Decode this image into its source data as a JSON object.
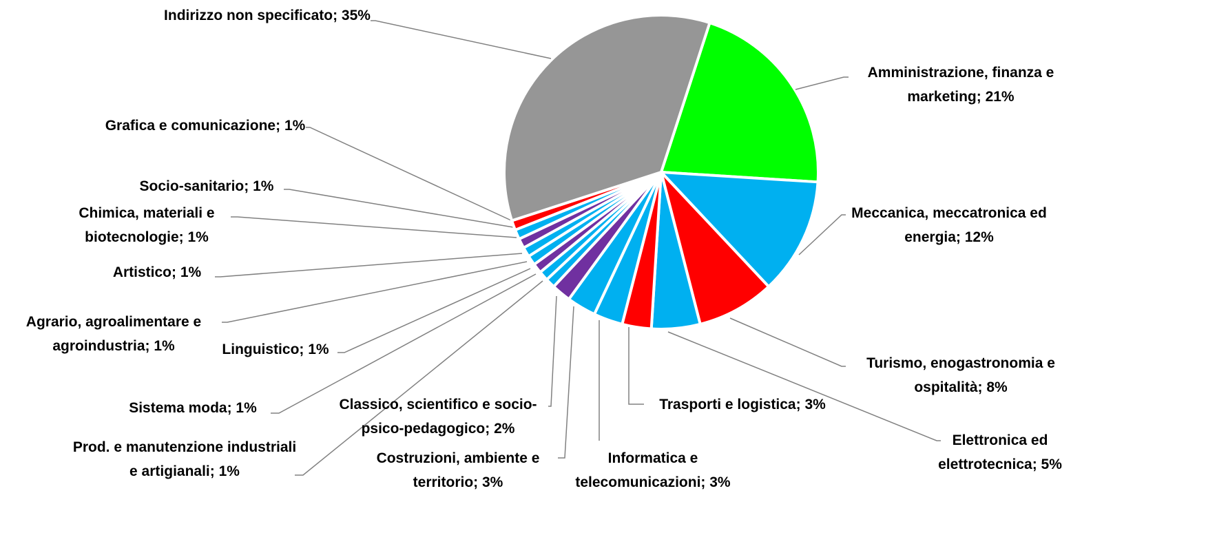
{
  "chart_data": {
    "type": "pie",
    "categories": [
      "Amministrazione, finanza e marketing",
      "Meccanica, meccatronica ed energia",
      "Turismo, enogastronomia e ospitalità",
      "Elettronica ed elettrotecnica",
      "Trasporti e logistica",
      "Informatica e telecomunicazioni",
      "Costruzioni, ambiente e territorio",
      "Classico, scientifico e socio-psico-pedagogico",
      "Prod. e manutenzione industriali e artigianali",
      "Sistema moda",
      "Linguistico",
      "Agrario, agroalimentare e agroindustria",
      "Artistico",
      "Chimica, materiali e biotecnologie",
      "Socio-sanitario",
      "Grafica e comunicazione",
      "Indirizzo non specificato"
    ],
    "values": [
      21,
      12,
      8,
      5,
      3,
      3,
      3,
      2,
      1,
      1,
      1,
      1,
      1,
      1,
      1,
      1,
      35
    ],
    "value_labels": [
      "21%",
      "12%",
      "8%",
      "5%",
      "3%",
      "3%",
      "3%",
      "2%",
      "1%",
      "1%",
      "1%",
      "1%",
      "1%",
      "1%",
      "1%",
      "1%",
      "35%"
    ],
    "label_separator": "; ",
    "colors": [
      "#00ff00",
      "#00b0f0",
      "#ff0000",
      "#00b0f0",
      "#ff0000",
      "#00b0f0",
      "#00b0f0",
      "#7030a0",
      "#00b0f0",
      "#00b0f0",
      "#7030a0",
      "#00b0f0",
      "#00b0f0",
      "#7030a0",
      "#00b0f0",
      "#ff0000",
      "#969696"
    ]
  }
}
